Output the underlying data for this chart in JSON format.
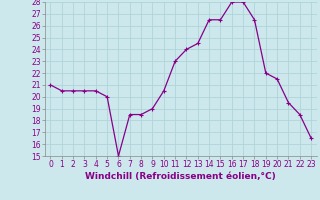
{
  "x": [
    0,
    1,
    2,
    3,
    4,
    5,
    6,
    7,
    8,
    9,
    10,
    11,
    12,
    13,
    14,
    15,
    16,
    17,
    18,
    19,
    20,
    21,
    22,
    23
  ],
  "y": [
    21,
    20.5,
    20.5,
    20.5,
    20.5,
    20,
    15,
    18.5,
    18.5,
    19,
    20.5,
    23,
    24,
    24.5,
    26.5,
    26.5,
    28,
    28,
    26.5,
    22,
    21.5,
    19.5,
    18.5,
    16.5
  ],
  "line_color": "#880088",
  "marker": "+",
  "marker_size": 3,
  "marker_lw": 0.8,
  "bg_color": "#cce8ec",
  "grid_color": "#b0d4d8",
  "xlabel": "Windchill (Refroidissement éolien,°C)",
  "ylim": [
    15,
    28
  ],
  "xlim": [
    -0.5,
    23.5
  ],
  "yticks": [
    15,
    16,
    17,
    18,
    19,
    20,
    21,
    22,
    23,
    24,
    25,
    26,
    27,
    28
  ],
  "xticks": [
    0,
    1,
    2,
    3,
    4,
    5,
    6,
    7,
    8,
    9,
    10,
    11,
    12,
    13,
    14,
    15,
    16,
    17,
    18,
    19,
    20,
    21,
    22,
    23
  ],
  "tick_label_size": 5.5,
  "xlabel_size": 6.5,
  "line_width": 0.9
}
